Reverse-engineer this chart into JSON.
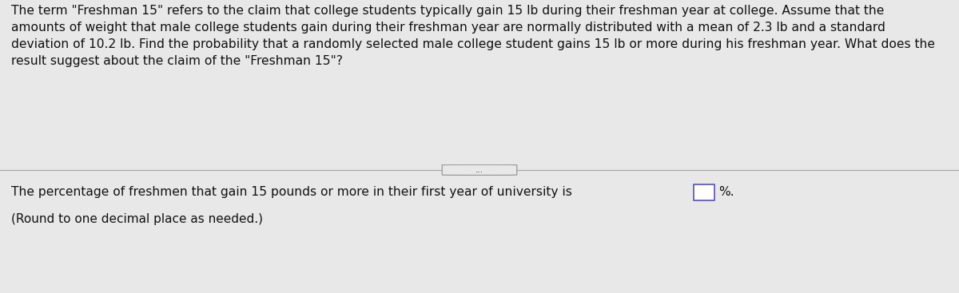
{
  "paragraph_text": "The term \"Freshman 15\" refers to the claim that college students typically gain 15 lb during their freshman year at college. Assume that the\namounts of weight that male college students gain during their freshman year are normally distributed with a mean of 2.3 lb and a standard\ndeviation of 10.2 lb. Find the probability that a randomly selected male college student gains 15 lb or more during his freshman year. What does the\nresult suggest about the claim of the \"Freshman 15\"?",
  "button_text": "...",
  "answer_line1": "The percentage of freshmen that gain 15 pounds or more in their first year of university is",
  "answer_suffix": "%.",
  "answer_line2": "(Round to one decimal place as needed.)",
  "bg_color": "#e8e8e8",
  "panel_top_color": "#f0f0f0",
  "panel_bottom_color": "#e0e0e0",
  "text_color": "#111111",
  "divider_color": "#aaaaaa",
  "btn_edge_color": "#999999",
  "input_box_edge_color": "#4444bb",
  "font_size_para": 11.2,
  "font_size_answer": 11.2,
  "font_size_small": 11.0,
  "font_size_btn": 7.5
}
